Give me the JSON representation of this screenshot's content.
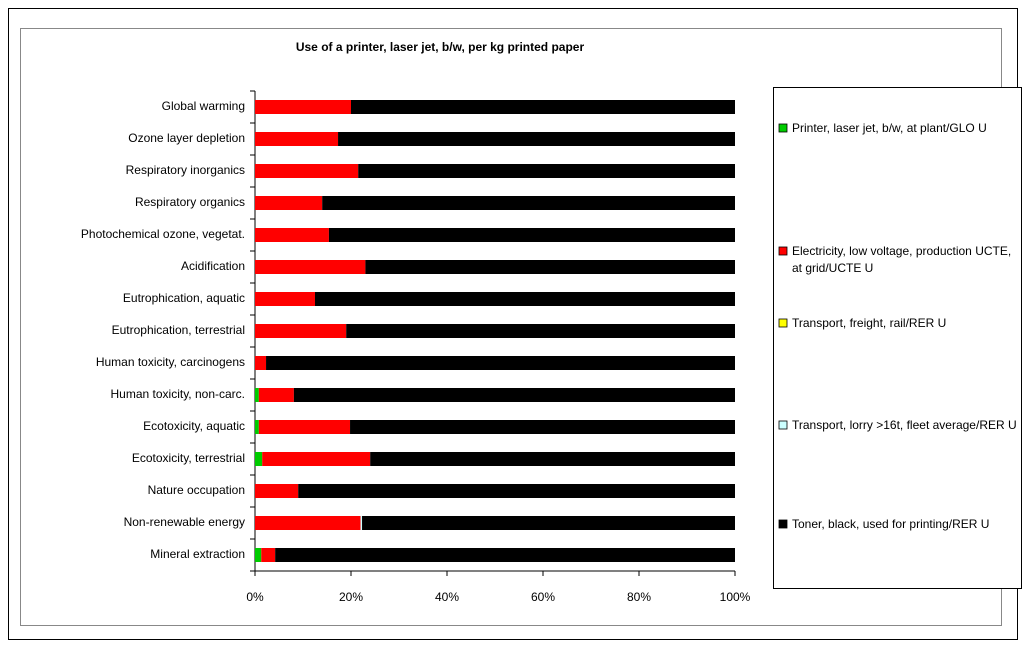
{
  "chart_data": {
    "type": "stacked_barh",
    "title": "Use of a printer, laser jet, b/w, per kg printed paper",
    "categories": [
      "Global warming",
      "Ozone layer depletion",
      "Respiratory inorganics",
      "Respiratory organics",
      "Photochemical ozone, vegetat.",
      "Acidification",
      "Eutrophication, aquatic",
      "Eutrophication, terrestrial",
      "Human toxicity, carcinogens",
      "Human toxicity, non-carc.",
      "Ecotoxicity, aquatic",
      "Ecotoxicity, terrestrial",
      "Nature occupation",
      "Non-renewable energy",
      "Mineral extraction"
    ],
    "series": [
      {
        "name": "Printer, laser jet, b/w, at plant/GLO U",
        "color": "#00cc00",
        "values": [
          0,
          0,
          0,
          0,
          0,
          0,
          0,
          0,
          0,
          0.8,
          0.8,
          1.5,
          0,
          0,
          1.3
        ]
      },
      {
        "name": "Electricity, low voltage, production UCTE, at grid/UCTE U",
        "color": "#ff0000",
        "values": [
          20,
          17.3,
          21.5,
          14,
          15.4,
          23,
          12.5,
          19,
          2.3,
          7.3,
          19,
          22.5,
          9,
          22,
          2.9
        ]
      },
      {
        "name": "Transport, freight, rail/RER U",
        "color": "#ffff00",
        "values": [
          0,
          0,
          0,
          0,
          0,
          0,
          0,
          0,
          0,
          0,
          0,
          0,
          0,
          0,
          0
        ]
      },
      {
        "name": "Transport, lorry >16t, fleet average/RER U",
        "color": "#ccffff",
        "values": [
          0,
          0,
          0,
          0,
          0,
          0,
          0,
          0,
          0,
          0,
          0,
          0,
          0,
          0.3,
          0
        ]
      },
      {
        "name": "Toner, black, used for printing/RER U",
        "color": "#000000",
        "values": [
          80,
          82.7,
          78.5,
          86,
          84.6,
          77,
          87.5,
          81,
          97.7,
          91.9,
          80.2,
          76,
          91,
          77.7,
          95.8
        ]
      }
    ],
    "xlim": [
      0,
      100
    ],
    "xticks": [
      {
        "value": 0,
        "label": "0%"
      },
      {
        "value": 20,
        "label": "20%"
      },
      {
        "value": 40,
        "label": "40%"
      },
      {
        "value": 60,
        "label": "60%"
      },
      {
        "value": 80,
        "label": "80%"
      },
      {
        "value": 100,
        "label": "100%"
      }
    ],
    "grid": false
  }
}
